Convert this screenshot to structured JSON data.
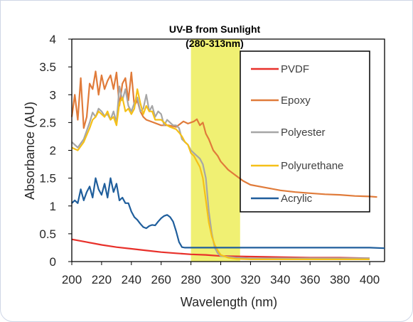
{
  "chart_data": {
    "type": "line",
    "title": "",
    "xlabel": "Wavelength (nm)",
    "ylabel": "Absorbance (AU)",
    "xlim": [
      200,
      410
    ],
    "ylim": [
      0,
      4
    ],
    "x_ticks": [
      "200",
      "220",
      "240",
      "260",
      "280",
      "300",
      "320",
      "340",
      "360",
      "380",
      "400"
    ],
    "y_ticks": [
      "0",
      "0.5",
      "1",
      "1.5",
      "2",
      "2.5",
      "3",
      "3.5",
      "4"
    ],
    "grid": false,
    "legend_position": "right",
    "annotation": {
      "line1": "UV-B from Sunlight",
      "line2": "(280-313nm)",
      "band_start": 280,
      "band_end": 313,
      "color": "#eded5a"
    },
    "series": [
      {
        "name": "PVDF",
        "color": "#e8302a",
        "points": [
          [
            200,
            0.4
          ],
          [
            210,
            0.35
          ],
          [
            220,
            0.3
          ],
          [
            230,
            0.26
          ],
          [
            240,
            0.23
          ],
          [
            250,
            0.2
          ],
          [
            260,
            0.17
          ],
          [
            270,
            0.15
          ],
          [
            280,
            0.13
          ],
          [
            290,
            0.12
          ],
          [
            300,
            0.1
          ],
          [
            320,
            0.09
          ],
          [
            340,
            0.08
          ],
          [
            360,
            0.07
          ],
          [
            380,
            0.07
          ],
          [
            400,
            0.06
          ]
        ]
      },
      {
        "name": "Epoxy",
        "color": "#e07b3a",
        "points": [
          [
            200,
            2.6
          ],
          [
            202,
            3.0
          ],
          [
            204,
            2.55
          ],
          [
            206,
            3.3
          ],
          [
            208,
            2.4
          ],
          [
            210,
            2.6
          ],
          [
            212,
            3.2
          ],
          [
            214,
            3.1
          ],
          [
            216,
            3.42
          ],
          [
            218,
            3.0
          ],
          [
            220,
            3.35
          ],
          [
            222,
            3.1
          ],
          [
            224,
            3.25
          ],
          [
            226,
            3.35
          ],
          [
            228,
            3.1
          ],
          [
            230,
            3.4
          ],
          [
            232,
            2.8
          ],
          [
            234,
            3.2
          ],
          [
            236,
            3.3
          ],
          [
            238,
            2.9
          ],
          [
            240,
            3.4
          ],
          [
            242,
            2.8
          ],
          [
            244,
            2.9
          ],
          [
            246,
            2.7
          ],
          [
            248,
            2.6
          ],
          [
            250,
            2.55
          ],
          [
            255,
            2.5
          ],
          [
            260,
            2.45
          ],
          [
            265,
            2.45
          ],
          [
            270,
            2.42
          ],
          [
            275,
            2.52
          ],
          [
            278,
            2.48
          ],
          [
            282,
            2.52
          ],
          [
            284,
            2.56
          ],
          [
            286,
            2.45
          ],
          [
            288,
            2.5
          ],
          [
            290,
            2.3
          ],
          [
            292,
            2.2
          ],
          [
            295,
            2.0
          ],
          [
            298,
            1.9
          ],
          [
            300,
            1.8
          ],
          [
            305,
            1.65
          ],
          [
            310,
            1.55
          ],
          [
            315,
            1.45
          ],
          [
            320,
            1.38
          ],
          [
            330,
            1.33
          ],
          [
            340,
            1.28
          ],
          [
            350,
            1.25
          ],
          [
            360,
            1.23
          ],
          [
            370,
            1.21
          ],
          [
            380,
            1.2
          ],
          [
            390,
            1.18
          ],
          [
            400,
            1.17
          ],
          [
            405,
            1.16
          ]
        ]
      },
      {
        "name": "Polyester",
        "color": "#a6a6a6",
        "points": [
          [
            200,
            2.15
          ],
          [
            204,
            2.05
          ],
          [
            208,
            2.2
          ],
          [
            212,
            2.5
          ],
          [
            214,
            2.68
          ],
          [
            216,
            2.6
          ],
          [
            218,
            2.75
          ],
          [
            220,
            2.7
          ],
          [
            222,
            2.62
          ],
          [
            224,
            2.65
          ],
          [
            226,
            2.55
          ],
          [
            228,
            2.7
          ],
          [
            230,
            2.5
          ],
          [
            232,
            3.15
          ],
          [
            234,
            2.9
          ],
          [
            236,
            3.1
          ],
          [
            238,
            2.8
          ],
          [
            240,
            2.7
          ],
          [
            242,
            2.85
          ],
          [
            244,
            2.95
          ],
          [
            246,
            2.7
          ],
          [
            248,
            2.75
          ],
          [
            250,
            3.0
          ],
          [
            252,
            2.7
          ],
          [
            254,
            2.8
          ],
          [
            256,
            2.6
          ],
          [
            258,
            2.7
          ],
          [
            260,
            2.65
          ],
          [
            262,
            2.45
          ],
          [
            264,
            2.55
          ],
          [
            266,
            2.5
          ],
          [
            268,
            2.45
          ],
          [
            270,
            2.45
          ],
          [
            272,
            2.4
          ],
          [
            274,
            2.2
          ],
          [
            276,
            2.15
          ],
          [
            278,
            2.1
          ],
          [
            280,
            2.0
          ],
          [
            282,
            1.95
          ],
          [
            284,
            1.9
          ],
          [
            286,
            1.85
          ],
          [
            288,
            1.75
          ],
          [
            290,
            1.5
          ],
          [
            292,
            0.9
          ],
          [
            294,
            0.5
          ],
          [
            296,
            0.25
          ],
          [
            298,
            0.15
          ],
          [
            300,
            0.1
          ],
          [
            310,
            0.07
          ],
          [
            320,
            0.06
          ],
          [
            340,
            0.06
          ],
          [
            360,
            0.06
          ],
          [
            380,
            0.06
          ],
          [
            400,
            0.06
          ]
        ]
      },
      {
        "name": "Polyurethane",
        "color": "#f5c018",
        "points": [
          [
            200,
            2.05
          ],
          [
            204,
            2.0
          ],
          [
            208,
            2.15
          ],
          [
            212,
            2.4
          ],
          [
            214,
            2.55
          ],
          [
            216,
            2.6
          ],
          [
            218,
            2.7
          ],
          [
            220,
            2.65
          ],
          [
            222,
            2.6
          ],
          [
            224,
            2.7
          ],
          [
            226,
            2.55
          ],
          [
            228,
            2.6
          ],
          [
            230,
            2.45
          ],
          [
            232,
            2.85
          ],
          [
            234,
            2.95
          ],
          [
            236,
            2.7
          ],
          [
            238,
            2.75
          ],
          [
            240,
            2.65
          ],
          [
            242,
            2.75
          ],
          [
            244,
            3.1
          ],
          [
            246,
            2.85
          ],
          [
            248,
            2.65
          ],
          [
            250,
            2.8
          ],
          [
            252,
            2.7
          ],
          [
            254,
            2.7
          ],
          [
            256,
            2.55
          ],
          [
            258,
            2.55
          ],
          [
            260,
            2.55
          ],
          [
            262,
            2.5
          ],
          [
            264,
            2.45
          ],
          [
            266,
            2.42
          ],
          [
            268,
            2.4
          ],
          [
            270,
            2.38
          ],
          [
            272,
            2.32
          ],
          [
            274,
            2.25
          ],
          [
            276,
            2.15
          ],
          [
            278,
            2.1
          ],
          [
            280,
            1.95
          ],
          [
            282,
            1.9
          ],
          [
            284,
            1.8
          ],
          [
            286,
            1.7
          ],
          [
            288,
            1.5
          ],
          [
            290,
            1.1
          ],
          [
            292,
            0.7
          ],
          [
            294,
            0.45
          ],
          [
            296,
            0.3
          ],
          [
            298,
            0.2
          ],
          [
            300,
            0.12
          ],
          [
            305,
            0.07
          ],
          [
            310,
            0.05
          ],
          [
            320,
            0.04
          ],
          [
            340,
            0.04
          ],
          [
            360,
            0.04
          ],
          [
            380,
            0.04
          ],
          [
            400,
            0.04
          ]
        ]
      },
      {
        "name": "Acrylic",
        "color": "#1f5e9c",
        "points": [
          [
            200,
            1.05
          ],
          [
            202,
            1.1
          ],
          [
            204,
            1.05
          ],
          [
            206,
            1.3
          ],
          [
            208,
            1.1
          ],
          [
            210,
            1.25
          ],
          [
            212,
            1.35
          ],
          [
            214,
            1.15
          ],
          [
            216,
            1.5
          ],
          [
            218,
            1.3
          ],
          [
            220,
            1.2
          ],
          [
            222,
            1.4
          ],
          [
            224,
            1.15
          ],
          [
            226,
            1.5
          ],
          [
            228,
            1.25
          ],
          [
            230,
            1.4
          ],
          [
            232,
            1.1
          ],
          [
            234,
            1.15
          ],
          [
            236,
            1.05
          ],
          [
            238,
            1.05
          ],
          [
            240,
            0.9
          ],
          [
            242,
            0.8
          ],
          [
            244,
            0.75
          ],
          [
            246,
            0.68
          ],
          [
            248,
            0.62
          ],
          [
            250,
            0.6
          ],
          [
            252,
            0.64
          ],
          [
            254,
            0.66
          ],
          [
            256,
            0.65
          ],
          [
            258,
            0.72
          ],
          [
            260,
            0.78
          ],
          [
            262,
            0.82
          ],
          [
            264,
            0.84
          ],
          [
            266,
            0.8
          ],
          [
            268,
            0.72
          ],
          [
            270,
            0.55
          ],
          [
            272,
            0.35
          ],
          [
            274,
            0.26
          ],
          [
            276,
            0.25
          ],
          [
            280,
            0.25
          ],
          [
            290,
            0.25
          ],
          [
            300,
            0.25
          ],
          [
            320,
            0.25
          ],
          [
            340,
            0.25
          ],
          [
            360,
            0.25
          ],
          [
            380,
            0.25
          ],
          [
            400,
            0.25
          ],
          [
            410,
            0.24
          ]
        ]
      }
    ]
  }
}
